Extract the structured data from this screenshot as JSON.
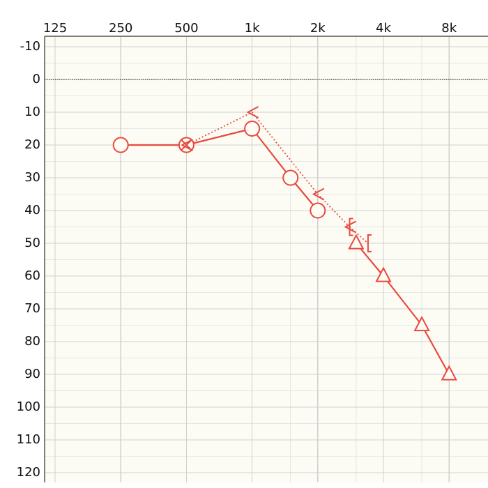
{
  "chart_data": {
    "type": "line",
    "title": "",
    "xlabel": "",
    "ylabel": "",
    "x_scale": "log2",
    "x_range_hz": [
      125,
      8000
    ],
    "y_range_db": [
      -10,
      120
    ],
    "y_inverted": true,
    "grid": true,
    "colors": {
      "plot_background": "#fcfcf4",
      "major_grid": "#cfcfcf",
      "minor_grid": "#e6e6e6",
      "axis": "#555555",
      "zero_line": "#333333",
      "series": "#e8493f"
    },
    "x_ticks": [
      {
        "hz": 125,
        "label": "125"
      },
      {
        "hz": 250,
        "label": "250"
      },
      {
        "hz": 500,
        "label": "500"
      },
      {
        "hz": 1000,
        "label": "1k"
      },
      {
        "hz": 2000,
        "label": "2k"
      },
      {
        "hz": 4000,
        "label": "4k"
      },
      {
        "hz": 8000,
        "label": "8k"
      }
    ],
    "x_minor_hz": [
      1500,
      3000,
      6000
    ],
    "y_ticks": [
      -10,
      0,
      10,
      20,
      30,
      40,
      50,
      60,
      70,
      80,
      90,
      100,
      110,
      120
    ],
    "series": [
      {
        "symbol": "circle",
        "line_style": "solid",
        "points": [
          {
            "x": 250,
            "y": 20
          },
          {
            "x": 500,
            "y": 20
          },
          {
            "x": 1000,
            "y": 15
          },
          {
            "x": 1500,
            "y": 30
          },
          {
            "x": 2000,
            "y": 40
          }
        ]
      },
      {
        "symbol": "triangle",
        "line_style": "solid",
        "points": [
          {
            "x": 3000,
            "y": 50
          },
          {
            "x": 4000,
            "y": 60
          },
          {
            "x": 6000,
            "y": 75
          },
          {
            "x": 8000,
            "y": 90
          }
        ]
      },
      {
        "symbol": "less-than",
        "line_style": "dotted",
        "points": [
          {
            "x": 500,
            "y": 20
          },
          {
            "x": 1000,
            "y": 10
          },
          {
            "x": 2000,
            "y": 35
          },
          {
            "x": 2800,
            "y": 45
          }
        ]
      },
      {
        "symbol": "bracket",
        "line_style": "dotted",
        "points": [
          {
            "x": 2800,
            "y": 45
          },
          {
            "x": 3400,
            "y": 50
          }
        ]
      }
    ]
  }
}
